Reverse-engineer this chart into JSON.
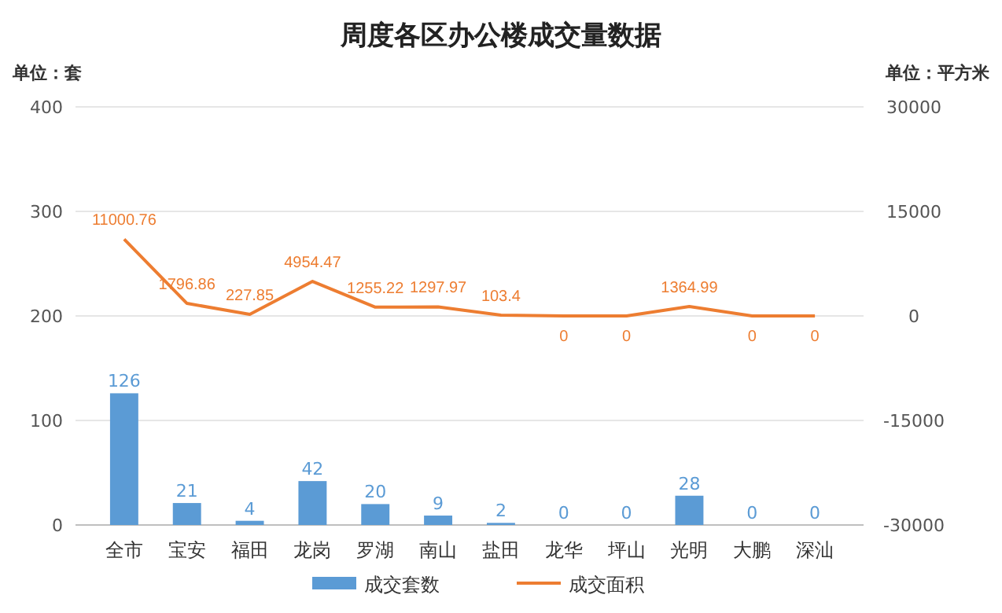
{
  "chart_data": {
    "type": "bar",
    "title": "周度各区办公楼成交量数据",
    "ylabel": "单位：套",
    "y2label": "单位：平方米",
    "categories": [
      "全市",
      "宝安",
      "福田",
      "龙岗",
      "罗湖",
      "南山",
      "盐田",
      "龙华",
      "坪山",
      "光明",
      "大鹏",
      "深汕"
    ],
    "series": [
      {
        "name": "成交套数",
        "color": "#5b9bd5",
        "values": [
          126,
          21,
          4,
          42,
          20,
          9,
          2,
          0,
          0,
          28,
          0,
          0
        ]
      },
      {
        "name": "成交面积",
        "type": "line",
        "axis": "y2",
        "color": "#ed7d31",
        "values": [
          11000.76,
          1796.86,
          227.85,
          4954.47,
          1255.22,
          1297.97,
          103.4,
          0,
          0,
          1364.99,
          0,
          0
        ]
      }
    ],
    "ylim": [
      0,
      400
    ],
    "yticks": [
      0,
      100,
      200,
      300,
      400
    ],
    "y2lim": [
      -30000,
      30000
    ],
    "y2ticks": [
      -30000,
      -15000,
      0,
      15000,
      30000
    ],
    "grid": "y",
    "legend": "bottom",
    "data_labels": true,
    "marker": "none",
    "line_style": "solid"
  }
}
